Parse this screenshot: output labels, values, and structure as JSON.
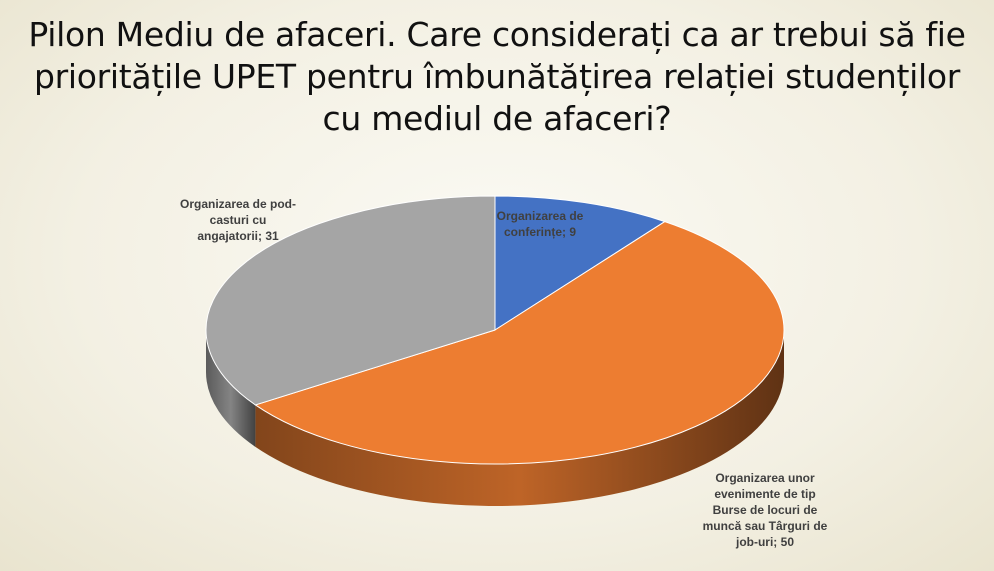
{
  "title": "Pilon Mediu de afaceri. Care considerați ca ar trebui să fie prioritățile UPET pentru îmbunătățirea relației studenților cu mediul de afaceri?",
  "chart_data": {
    "type": "pie",
    "three_d": true,
    "values": [
      9,
      50,
      31
    ],
    "value_labels": [
      "Organizarea de conferințe; 9",
      "Organizarea unor evenimente de tip Burse de locuri de muncă sau Târguri de job-uri; 50",
      "Organizarea de pod-casturi cu angajatorii; 31"
    ],
    "colors": [
      "#4472c4",
      "#ed7d31",
      "#a5a5a5"
    ]
  }
}
